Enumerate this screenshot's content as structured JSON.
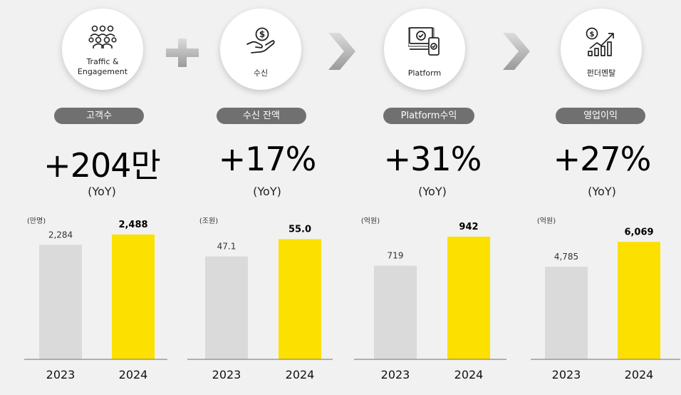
{
  "colors": {
    "bar_prev": "#dadada",
    "bar_curr": "#fbe000",
    "pill": "#707070",
    "axis": "#8a8a8a"
  },
  "columns": [
    {
      "circle_icon": "people-group-icon",
      "circle_lines": [
        "Traffic &",
        "Engagement"
      ],
      "pill": "고객수",
      "big": "+204만",
      "yoy": "(YoY)"
    },
    {
      "circle_icon": "coin-hand-icon",
      "circle_lines": [
        "수신"
      ],
      "pill": "수신 잔액",
      "big": "+17%",
      "yoy": "(YoY)"
    },
    {
      "circle_icon": "devices-icon",
      "circle_lines": [
        "Platform"
      ],
      "pill": "Platform수익",
      "big": "+31%",
      "yoy": "(YoY)"
    },
    {
      "circle_icon": "growth-chart-icon",
      "circle_lines": [
        "펀더멘탈"
      ],
      "pill": "영업이익",
      "big": "+27%",
      "yoy": "(YoY)"
    }
  ],
  "separators": [
    "plus-icon",
    "chevron-right-icon",
    "chevron-right-icon"
  ],
  "chart_data": [
    {
      "type": "bar",
      "unit": "(만명)",
      "categories": [
        "2023",
        "2024"
      ],
      "values": [
        2284,
        2488
      ],
      "value_labels": [
        "2,284",
        "2,488"
      ],
      "ylim": [
        0,
        2700
      ]
    },
    {
      "type": "bar",
      "unit": "(조원)",
      "categories": [
        "2023",
        "2024"
      ],
      "values": [
        47.1,
        55.0
      ],
      "value_labels": [
        "47.1",
        "55.0"
      ],
      "ylim": [
        0,
        62
      ]
    },
    {
      "type": "bar",
      "unit": "(억원)",
      "categories": [
        "2023",
        "2024"
      ],
      "values": [
        719,
        942
      ],
      "value_labels": [
        "719",
        "942"
      ],
      "ylim": [
        0,
        1040
      ]
    },
    {
      "type": "bar",
      "unit": "(억원)",
      "categories": [
        "2023",
        "2024"
      ],
      "values": [
        4785,
        6069
      ],
      "value_labels": [
        "4,785",
        "6,069"
      ],
      "ylim": [
        0,
        7000
      ]
    }
  ]
}
